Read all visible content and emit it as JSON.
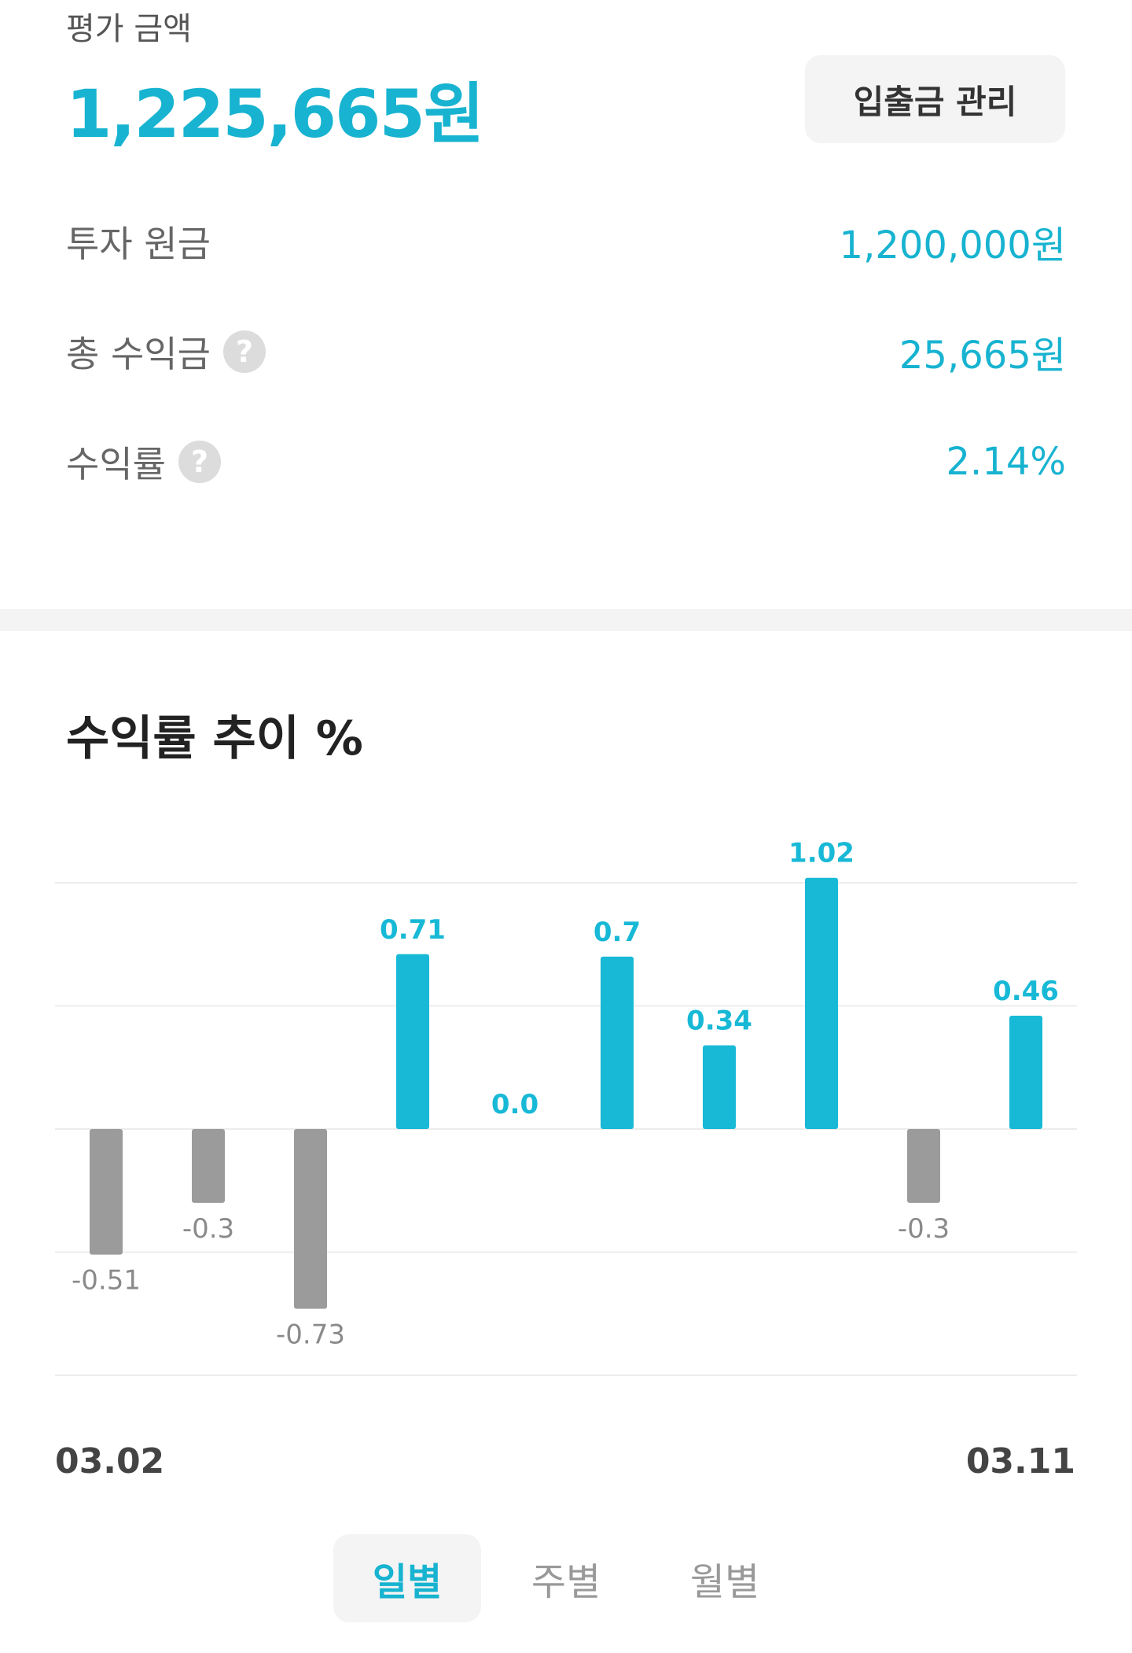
{
  "summary": {
    "evaluation_label": "평가 금액",
    "evaluation_amount": "1,225,665원",
    "manage_button": "입출금 관리",
    "principal_label": "투자 원금",
    "principal_value": "1,200,000원",
    "total_profit_label": "총 수익금",
    "total_profit_value": "25,665원",
    "return_rate_label": "수익률",
    "return_rate_value": "2.14%",
    "help_icon": "?"
  },
  "chart": {
    "title": "수익률 추이 %",
    "start_date": "03.02",
    "end_date": "03.11"
  },
  "chart_data": {
    "type": "bar",
    "title": "수익률 추이 %",
    "categories": [
      "",
      "",
      "",
      "",
      "",
      "",
      "",
      "",
      "",
      ""
    ],
    "values": [
      -0.51,
      -0.3,
      -0.73,
      0.71,
      0.0,
      0.7,
      0.34,
      1.02,
      -0.3,
      0.46
    ],
    "data_labels": [
      "-0.51",
      "-0.3",
      "-0.73",
      "0.71",
      "0.0",
      "0.7",
      "0.34",
      "1.02",
      "-0.3",
      "0.46"
    ],
    "ylim": [
      -1.0,
      1.0
    ],
    "grid": true,
    "positive_color": "#17b9d6",
    "negative_color": "#9b9b9b"
  },
  "tabs": [
    {
      "label": "일별",
      "active": true
    },
    {
      "label": "주별",
      "active": false
    },
    {
      "label": "월별",
      "active": false
    }
  ],
  "colors": {
    "accent": "#17b3d0"
  }
}
